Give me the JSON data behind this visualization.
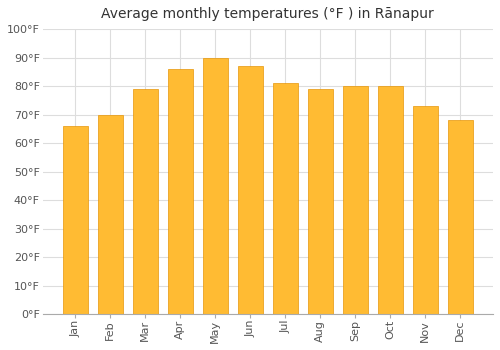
{
  "title": "Average monthly temperatures (°F ) in Rānapur",
  "months": [
    "Jan",
    "Feb",
    "Mar",
    "Apr",
    "May",
    "Jun",
    "Jul",
    "Aug",
    "Sep",
    "Oct",
    "Nov",
    "Dec"
  ],
  "values": [
    66,
    70,
    79,
    86,
    90,
    87,
    81,
    79,
    80,
    80,
    73,
    68
  ],
  "bar_color": "#FFBB33",
  "bar_edge_color": "#E6960A",
  "yticks": [
    0,
    10,
    20,
    30,
    40,
    50,
    60,
    70,
    80,
    90,
    100
  ],
  "ytick_labels": [
    "0°F",
    "10°F",
    "20°F",
    "30°F",
    "40°F",
    "50°F",
    "60°F",
    "70°F",
    "80°F",
    "90°F",
    "100°F"
  ],
  "ylim": [
    0,
    100
  ],
  "background_color": "#ffffff",
  "plot_bg_color": "#ffffff",
  "grid_color": "#dddddd",
  "title_fontsize": 10,
  "tick_fontsize": 8
}
